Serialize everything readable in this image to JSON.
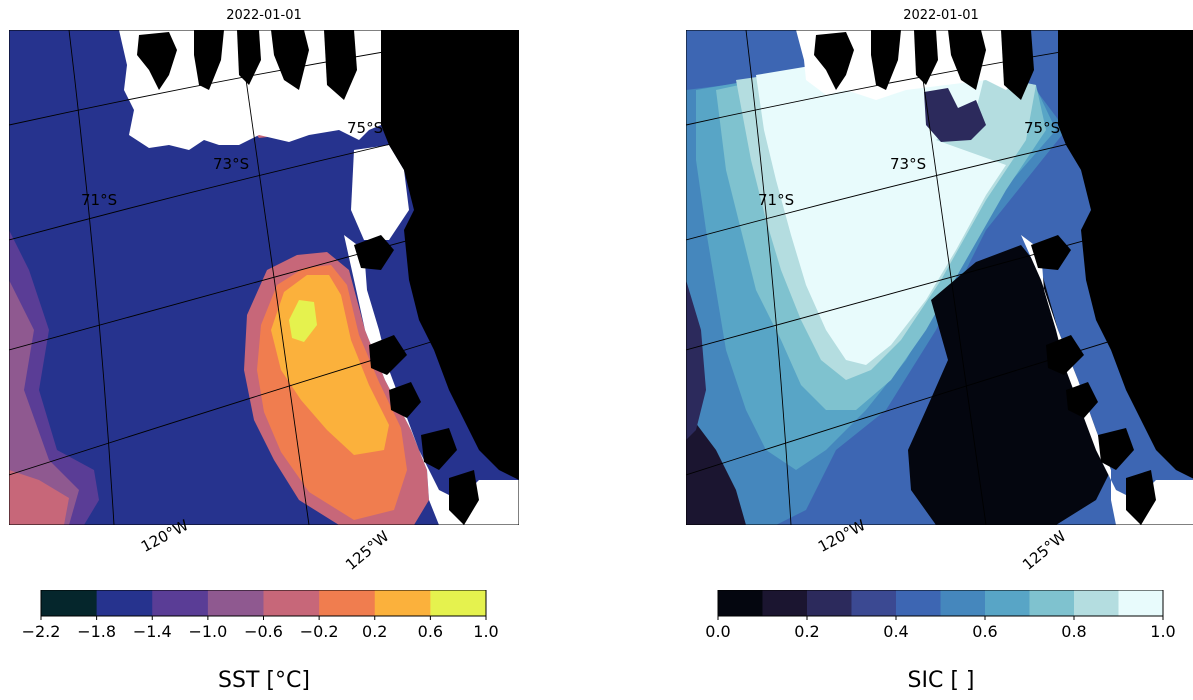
{
  "panels": [
    {
      "title": "2022-01-01",
      "colorbar_label": "SST [°C]",
      "colorbar_ticks": [
        "−2.2",
        "−1.8",
        "−1.4",
        "−1.0",
        "−0.6",
        "−0.2",
        "0.2",
        "0.6",
        "1.0"
      ],
      "colorbar_colors": [
        "#05262c",
        "#26338e",
        "#5a3d96",
        "#8f5990",
        "#c76779",
        "#f07d4f",
        "#fbb13c",
        "#e5f24e"
      ],
      "lat_labels": [
        "71°S",
        "73°S",
        "75°S"
      ],
      "lon_labels": [
        "120°W",
        "125°W"
      ]
    },
    {
      "title": "2022-01-01",
      "colorbar_label": "SIC [ ]",
      "colorbar_ticks": [
        "0.0",
        "0.2",
        "0.4",
        "0.6",
        "0.8",
        "1.0"
      ],
      "colorbar_colors": [
        "#04060f",
        "#1b1530",
        "#2c2a5c",
        "#3b4992",
        "#3d66b3",
        "#4587bd",
        "#58a5c6",
        "#7fc2cf",
        "#b4dde0",
        "#e8fbfc"
      ],
      "lat_labels": [
        "71°S",
        "73°S",
        "75°S"
      ],
      "lon_labels": [
        "120°W",
        "125°W"
      ]
    }
  ]
}
